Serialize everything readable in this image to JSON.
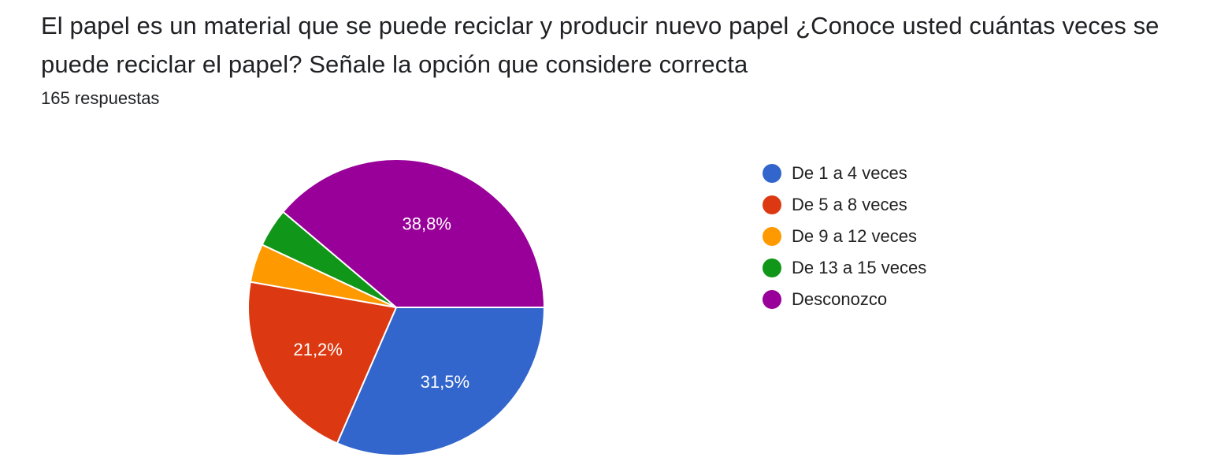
{
  "question": {
    "title": "El papel es un material que se puede reciclar y producir nuevo papel ¿Conoce usted cuántas veces se puede reciclar el papel? Señale la opción que considere correcta",
    "response_count": "165 respuestas"
  },
  "chart_data": {
    "type": "pie",
    "title": "",
    "legend_position": "right",
    "start_angle": "3 o'clock, clockwise",
    "categories": [
      "De 1 a 4 veces",
      "De 5 a 8 veces",
      "De 9 a 12 veces",
      "De 13 a 15 veces",
      "Desconozco"
    ],
    "values": [
      31.5,
      21.2,
      4.2,
      4.2,
      38.8
    ],
    "colors": [
      "#3366cc",
      "#dc3912",
      "#ff9900",
      "#109618",
      "#990099"
    ],
    "data_labels": [
      "31,5%",
      "21,2%",
      "",
      "",
      "38,8%"
    ]
  }
}
